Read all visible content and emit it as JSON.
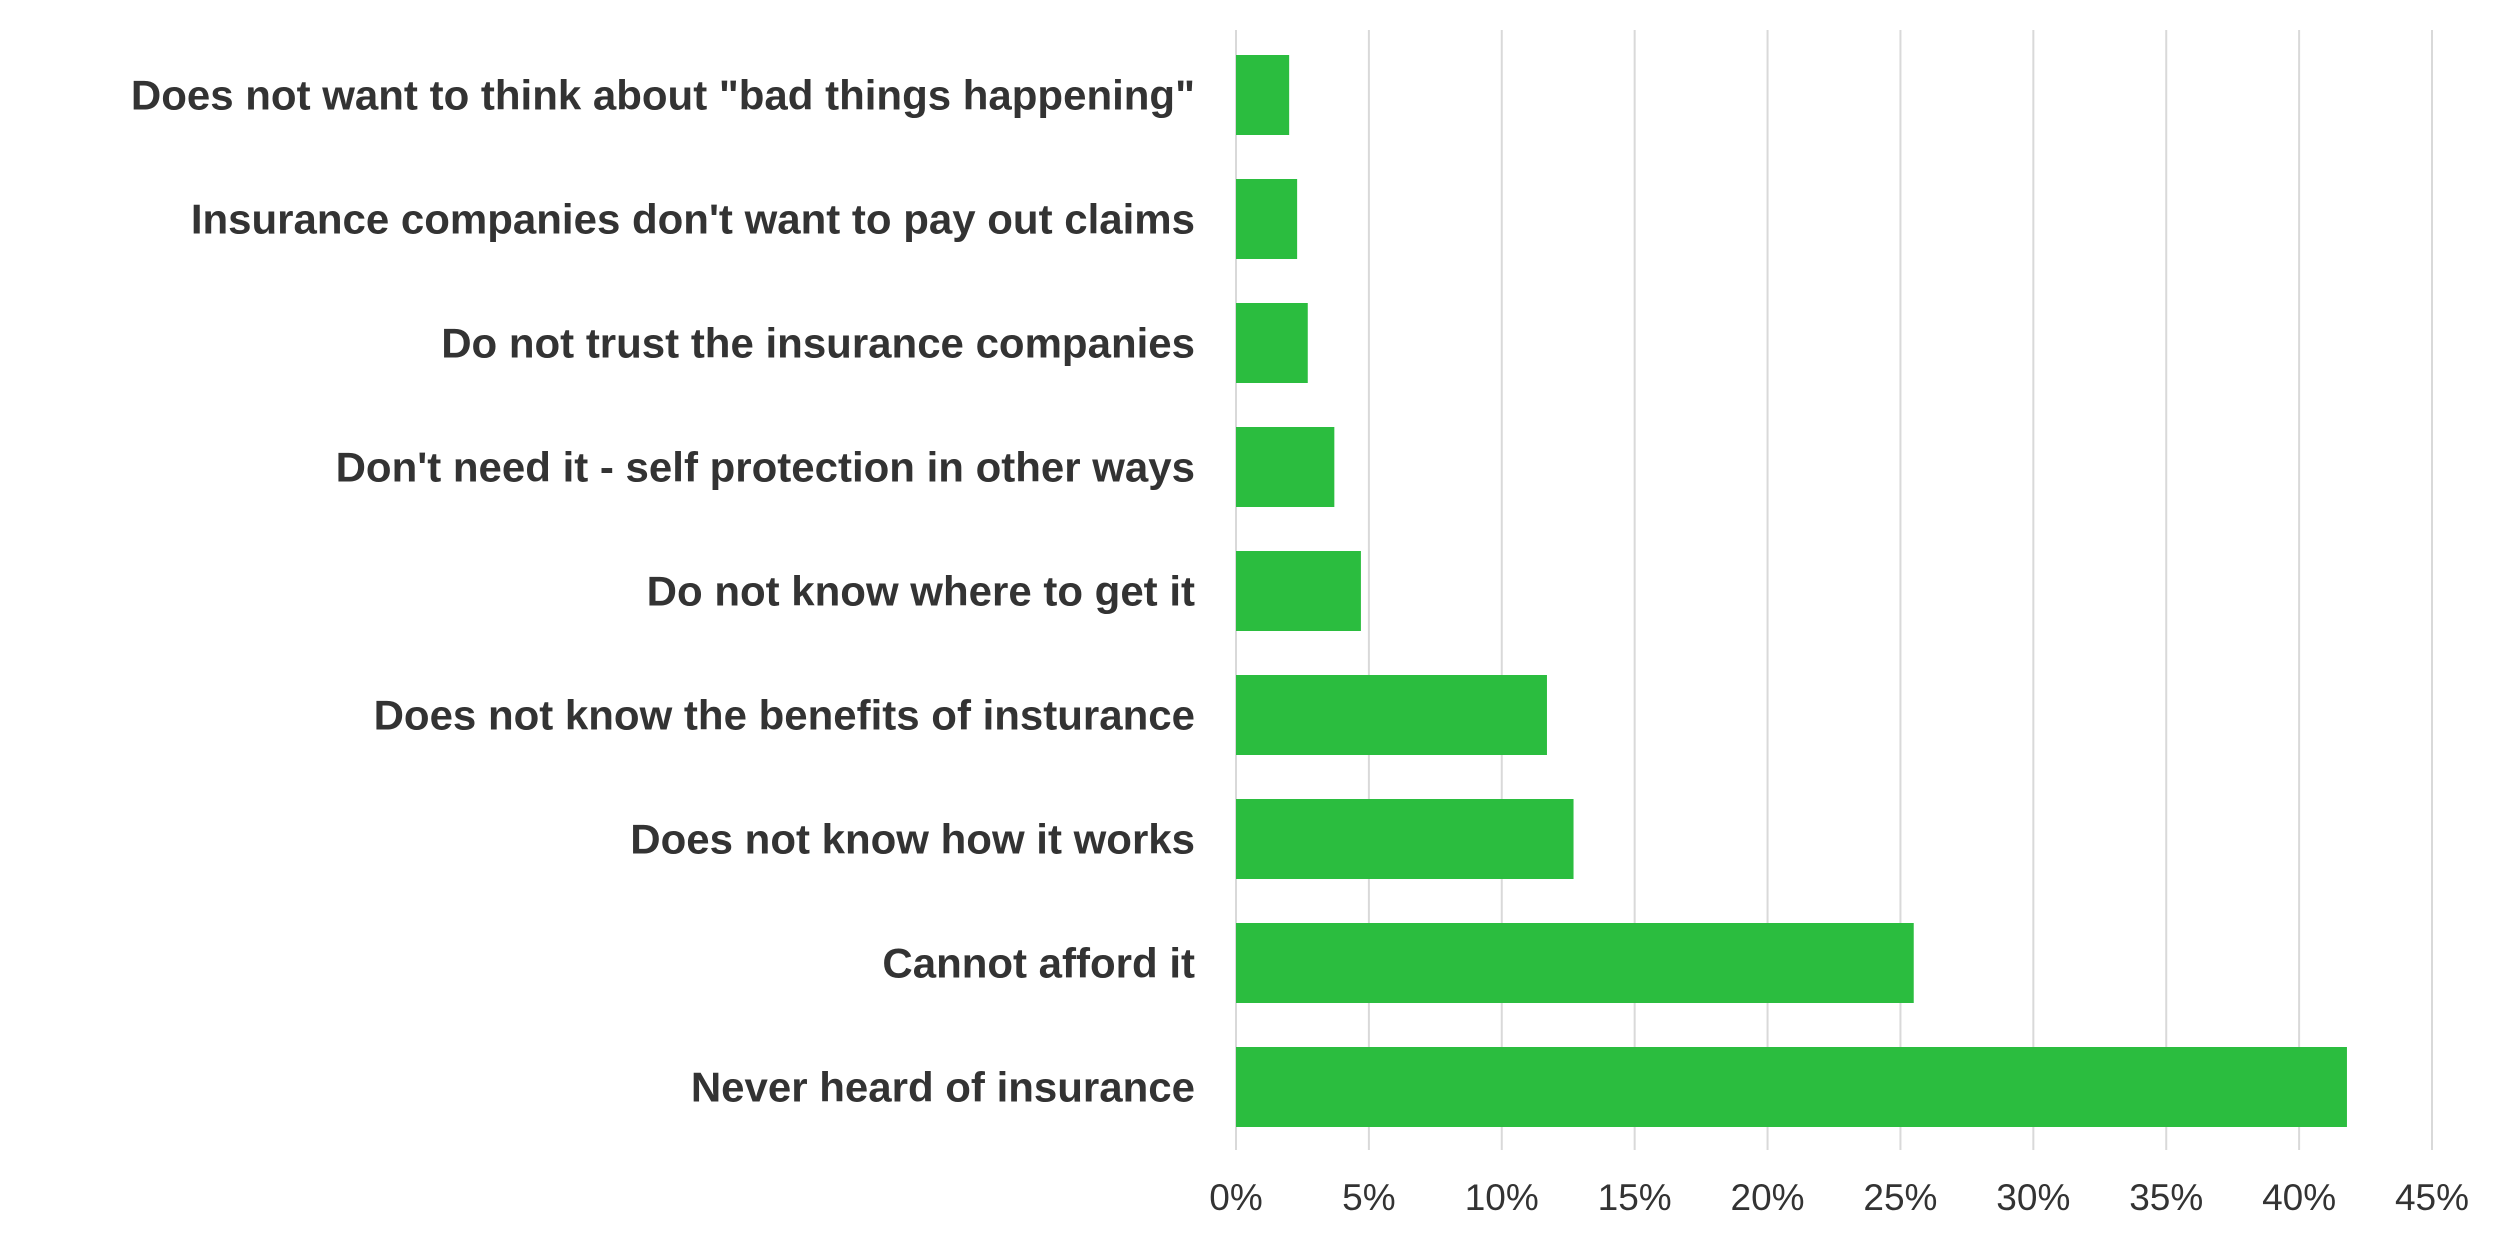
{
  "chart_data": {
    "type": "bar",
    "orientation": "horizontal",
    "categories": [
      "Does not want to think about \"bad things happening\"",
      "Insurance companies don't want to pay out claims",
      "Do not trust the insurance companies",
      "Don't need it - self protection in other ways",
      "Do not know where to get it",
      "Does not know the benefits of insturance",
      "Does not know how it works",
      "Cannot afford it ",
      "Never heard of insurance"
    ],
    "values": [
      2.0,
      2.3,
      2.7,
      3.7,
      4.7,
      11.7,
      12.7,
      25.5,
      41.8
    ],
    "xlim": [
      0,
      45
    ],
    "x_ticks": [
      0,
      5,
      10,
      15,
      20,
      25,
      30,
      35,
      40,
      45
    ],
    "x_tick_labels": [
      "0%",
      "5%",
      "10%",
      "15%",
      "20%",
      "25%",
      "30%",
      "35%",
      "40%",
      "45%"
    ],
    "title": "",
    "xlabel": "",
    "ylabel": "",
    "grid": "vertical",
    "legend": "none",
    "bar_color": "#2bbd3f"
  }
}
